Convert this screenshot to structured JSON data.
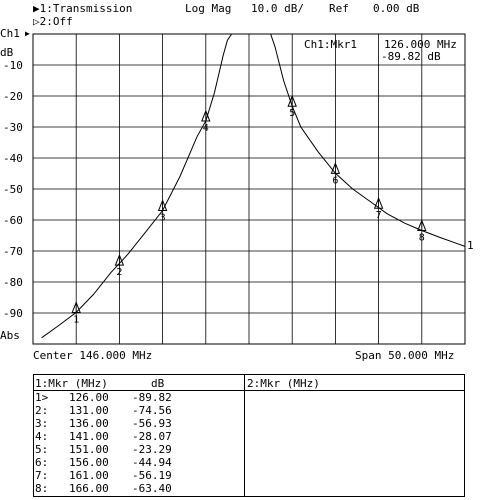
{
  "header": {
    "trace1": "▶1:Transmission",
    "trace2": "▷2:Off",
    "format": "Log Mag",
    "scale": "10.0 dB/",
    "ref": "Ref",
    "ref_value": "0.00 dB",
    "channel": "Ch1",
    "unit": "dB",
    "abs": "Abs",
    "trace_end_label": "1"
  },
  "marker_readout": {
    "label": "Ch1:Mkr1",
    "freq": "126.000 MHz",
    "value": "-89.82 dB"
  },
  "footer": {
    "center": "Center 146.000 MHz",
    "span": "Span 50.000 MHz"
  },
  "table": {
    "left_header": "1:Mkr (MHz)",
    "left_unit": "dB",
    "right_header": "2:Mkr (MHz)",
    "rows": [
      {
        "id": "1>",
        "freq": "126.00",
        "db": "-89.82"
      },
      {
        "id": "2:",
        "freq": "131.00",
        "db": "-74.56"
      },
      {
        "id": "3:",
        "freq": "136.00",
        "db": "-56.93"
      },
      {
        "id": "4:",
        "freq": "141.00",
        "db": "-28.07"
      },
      {
        "id": "5:",
        "freq": "151.00",
        "db": "-23.29"
      },
      {
        "id": "6:",
        "freq": "156.00",
        "db": "-44.94"
      },
      {
        "id": "7:",
        "freq": "161.00",
        "db": "-56.19"
      },
      {
        "id": "8:",
        "freq": "166.00",
        "db": "-63.40"
      }
    ]
  },
  "chart_data": {
    "type": "line",
    "xlim": [
      121,
      171
    ],
    "ylim": [
      -100,
      0
    ],
    "yticks": [
      "-10",
      "-20",
      "-30",
      "-40",
      "-50",
      "-60",
      "-70",
      "-80",
      "-90"
    ],
    "grid": true,
    "trace_color": "#000000",
    "series": [
      {
        "x": [
          122,
          124,
          126,
          128,
          130,
          132,
          134,
          136,
          138,
          140,
          141,
          142,
          143,
          143.5,
          144,
          144.5,
          148,
          148.5,
          149,
          150,
          151,
          152,
          154,
          156,
          158,
          160,
          162,
          164,
          166,
          168,
          170,
          171
        ],
        "y": [
          -98,
          -94,
          -89.82,
          -84,
          -77,
          -71,
          -64,
          -56.93,
          -46,
          -33,
          -28.07,
          -19,
          -7,
          -2,
          0,
          0,
          0,
          0,
          -4,
          -15,
          -23.29,
          -30,
          -38,
          -44.94,
          -50,
          -54,
          -58,
          -61,
          -63.4,
          -65.5,
          -67.5,
          -68.5
        ]
      }
    ],
    "markers": [
      {
        "label": "1",
        "x": 126,
        "y": -89.82
      },
      {
        "label": "2",
        "x": 131,
        "y": -74.56
      },
      {
        "label": "3",
        "x": 136,
        "y": -56.93
      },
      {
        "label": "4",
        "x": 141,
        "y": -28.07
      },
      {
        "label": "5",
        "x": 151,
        "y": -23.29
      },
      {
        "label": "6",
        "x": 156,
        "y": -44.94
      },
      {
        "label": "7",
        "x": 161,
        "y": -56.19
      },
      {
        "label": "8",
        "x": 166,
        "y": -63.4
      }
    ]
  }
}
